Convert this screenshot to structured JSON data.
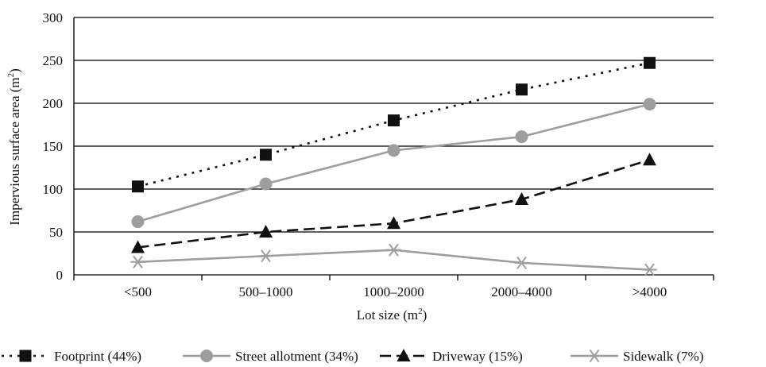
{
  "chart_data": {
    "type": "line",
    "title": "",
    "xlabel": "Lot size (m2)",
    "ylabel": "Impervious surface area (m2)",
    "xlabel_parts": {
      "text": "Lot size (m",
      "sup": "2",
      "close": ")"
    },
    "ylabel_parts": {
      "text": "Impervious surface area (m",
      "sup": "2",
      "close": ")"
    },
    "categories": [
      "<500",
      "500–1000",
      "1000–2000",
      "2000–4000",
      ">4000"
    ],
    "ylim": [
      0,
      300
    ],
    "yticks": [
      0,
      50,
      100,
      150,
      200,
      250,
      300
    ],
    "grid": true,
    "legend_position": "bottom",
    "series": [
      {
        "name": "Footprint (44%)",
        "values": [
          103,
          140,
          180,
          216,
          247
        ],
        "color": "#111111",
        "line": "dotted",
        "marker": "square"
      },
      {
        "name": "Street allotment (34%)",
        "values": [
          62,
          106,
          145,
          161,
          199
        ],
        "color": "#9e9e9e",
        "line": "solid",
        "marker": "circle"
      },
      {
        "name": "Driveway (15%)",
        "values": [
          32,
          50,
          60,
          88,
          134
        ],
        "color": "#111111",
        "line": "dashed",
        "marker": "triangle"
      },
      {
        "name": "Sidewalk (7%)",
        "values": [
          15,
          22,
          29,
          14,
          6
        ],
        "color": "#9e9e9e",
        "line": "solid",
        "marker": "asterisk"
      }
    ]
  }
}
